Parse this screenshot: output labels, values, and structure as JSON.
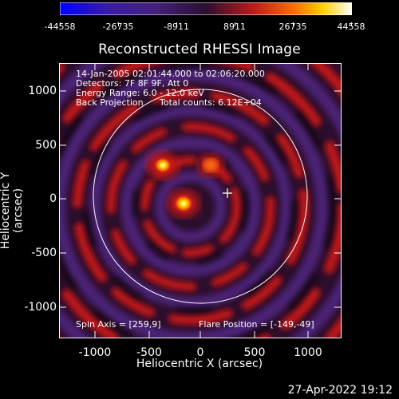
{
  "colorbar": {
    "ticks": [
      "-44558",
      "-26735",
      "-8911",
      "8911",
      "26735",
      "44558"
    ],
    "colors": [
      "#0000ff",
      "#3a1aa8",
      "#45207a",
      "#2a0f2f",
      "#bb1a1a",
      "#ff6a00",
      "#ffd000",
      "#ffffff"
    ]
  },
  "title": "Reconstructed RHESSI Image",
  "info": {
    "line1": "14-Jan-2005 02:01:44.000 to 02:06:20.000",
    "line2": "Detectors: 7F 8F 9F, Att 0",
    "line3": "Energy Range: 6.0 - 12.0 keV",
    "line4_left": "Back Projection",
    "line4_right": "Total counts: 6.12E+04"
  },
  "spin_axis": "Spin Axis = [259,9]",
  "flare_position": "Flare Position = [-149,-49]",
  "axes": {
    "xlabel": "Heliocentric X (arcsec)",
    "ylabel": "Heliocentric Y (arcsec)",
    "xticks": [
      "-1000",
      "-500",
      "0",
      "500",
      "1000"
    ],
    "yticks": [
      "1000",
      "500",
      "0",
      "-500",
      "-1000"
    ]
  },
  "footer": "27-Apr-2022 19:12"
}
